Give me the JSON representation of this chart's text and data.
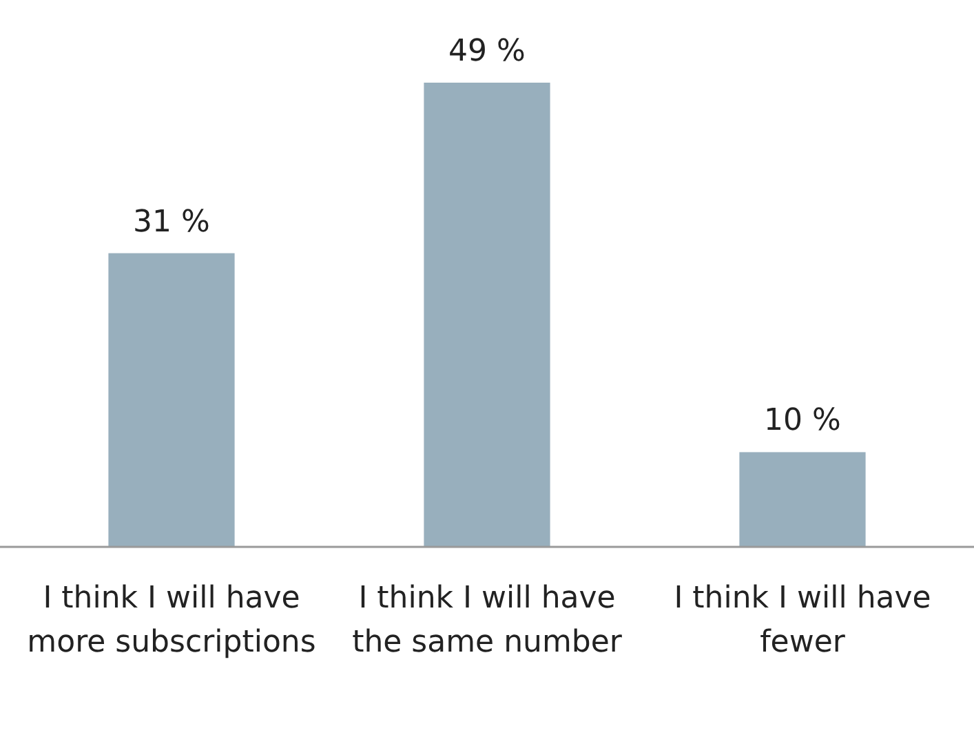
{
  "chart_data": {
    "type": "bar",
    "relative": false,
    "categories": [
      "I think I will have more subscriptions",
      "I think I will have the same number",
      "I think I will have fewer"
    ],
    "values": [
      31,
      49,
      10
    ],
    "value_labels": [
      "31 %",
      "49 %",
      "10 %"
    ],
    "color": "#98afbd"
  }
}
